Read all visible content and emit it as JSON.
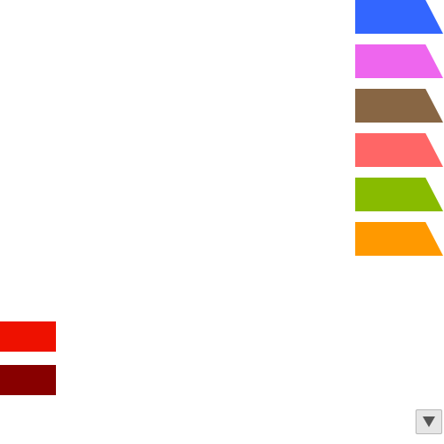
{
  "colors": {
    "blue": "#3366ff",
    "pink": "#ee66ee",
    "brown": "#886644",
    "salmon": "#ff6666",
    "green": "#88bb00",
    "orange": "#ff9900",
    "red": "#ee1100",
    "dark_red": "#880000",
    "button_bg": "#e6e6e6",
    "arrow": "#555555"
  },
  "right_tabs": [
    {
      "name": "blue-tab",
      "color": "#3366ff"
    },
    {
      "name": "pink-tab",
      "color": "#ee66ee"
    },
    {
      "name": "brown-tab",
      "color": "#886644"
    },
    {
      "name": "salmon-tab",
      "color": "#ff6666"
    },
    {
      "name": "green-tab",
      "color": "#88bb00"
    },
    {
      "name": "orange-tab",
      "color": "#ff9900"
    }
  ],
  "left_swatches": [
    {
      "name": "red-swatch",
      "color": "#ee1100"
    },
    {
      "name": "dark-red-swatch",
      "color": "#880000"
    }
  ],
  "scroll_button": {
    "icon": "triangle-down-icon"
  }
}
